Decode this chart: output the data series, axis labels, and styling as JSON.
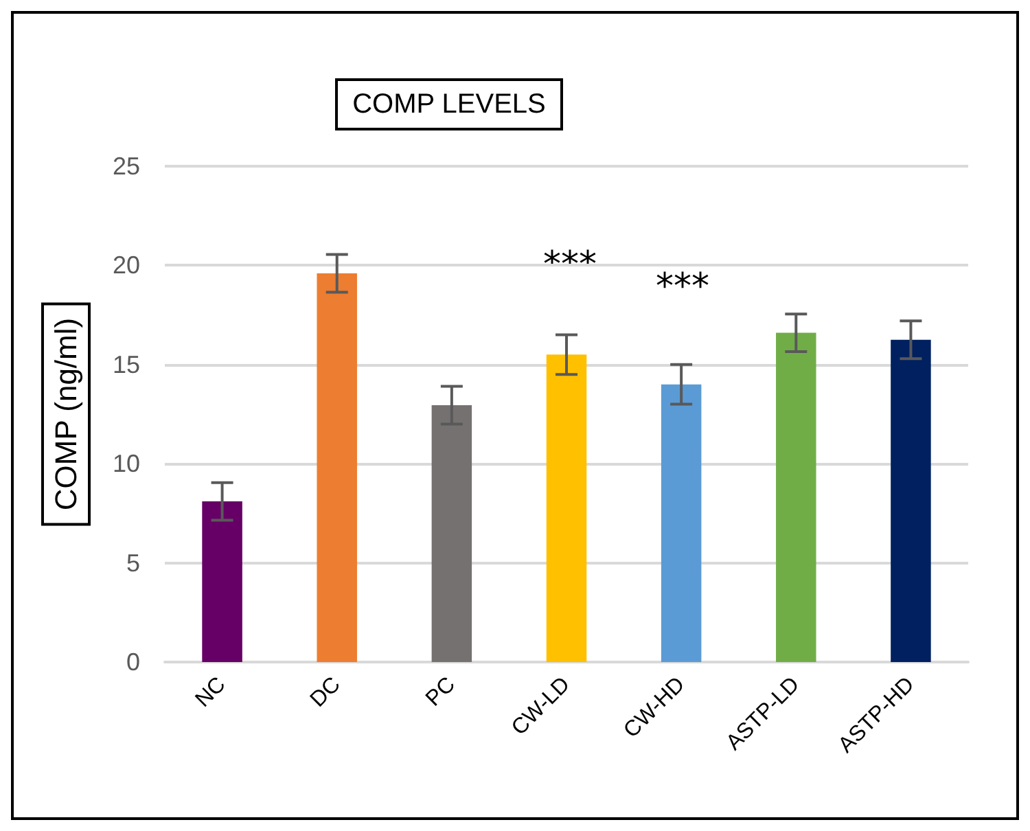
{
  "chart_data": {
    "type": "bar",
    "title": "COMP LEVELS",
    "ylabel": "COMP (ng/ml)",
    "categories": [
      "NC",
      "DC",
      "PC",
      "CW-LD",
      "CW-HD",
      "ASTP-LD",
      "ASTP-HD"
    ],
    "values": [
      8.1,
      19.6,
      12.95,
      15.5,
      14.0,
      16.6,
      16.25
    ],
    "colors": [
      "#660066",
      "#ed7d31",
      "#767171",
      "#ffc000",
      "#5b9bd5",
      "#70ad47",
      "#002060"
    ],
    "errors": [
      0.95,
      0.95,
      0.95,
      1.0,
      1.0,
      0.95,
      0.95
    ],
    "ylim": [
      0,
      25
    ],
    "yticks": [
      0,
      5,
      10,
      15,
      20,
      25
    ],
    "grid": "y",
    "annotations": [
      "***",
      "***"
    ]
  }
}
